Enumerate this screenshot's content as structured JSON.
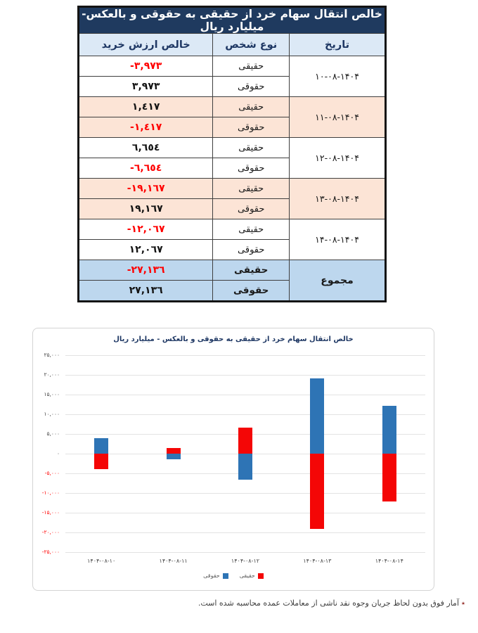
{
  "colors": {
    "navy": "#1F3A5F",
    "header_bg": "#DCE9F6",
    "total_bg": "#BDD7EE",
    "alt_row_bg": "#FCE4D6",
    "negative_text": "#FF0000",
    "series_red": "#F40606",
    "series_blue": "#2E74B5",
    "gridline": "#E3E3E3"
  },
  "table": {
    "title": "خالص انتقال سهام خرد از حقیقی به حقوقی و بالعکس- میلیارد ریال",
    "columns": [
      "تاریخ",
      "نوع شخص",
      "خالص ارزش خرید"
    ],
    "groups": [
      {
        "date": "۱۰-۰۸-۱۴۰۴",
        "bg": "white",
        "bold": false,
        "rows": [
          {
            "type": "حقیقی",
            "value": "-٣,٩٧٣",
            "negative": true
          },
          {
            "type": "حقوقی",
            "value": "٣,٩٧٣",
            "negative": false
          }
        ]
      },
      {
        "date": "۱۱-۰۸-۱۴۰۴",
        "bg": "peach",
        "bold": false,
        "rows": [
          {
            "type": "حقیقی",
            "value": "١,٤١٧",
            "negative": false
          },
          {
            "type": "حقوقی",
            "value": "-١,٤١٧",
            "negative": true
          }
        ]
      },
      {
        "date": "۱۲-۰۸-۱۴۰۴",
        "bg": "white",
        "bold": false,
        "rows": [
          {
            "type": "حقیقی",
            "value": "٦,٦٥٤",
            "negative": false
          },
          {
            "type": "حقوقی",
            "value": "-٦,٦٥٤",
            "negative": true
          }
        ]
      },
      {
        "date": "۱۳-۰۸-۱۴۰۴",
        "bg": "peach",
        "bold": false,
        "rows": [
          {
            "type": "حقیقی",
            "value": "-١٩,١٦٧",
            "negative": true
          },
          {
            "type": "حقوقی",
            "value": "١٩,١٦٧",
            "negative": false
          }
        ]
      },
      {
        "date": "۱۴-۰۸-۱۴۰۴",
        "bg": "white",
        "bold": false,
        "rows": [
          {
            "type": "حقیقی",
            "value": "-١٢,٠٦٧",
            "negative": true
          },
          {
            "type": "حقوقی",
            "value": "١٢,٠٦٧",
            "negative": false
          }
        ]
      },
      {
        "date": "مجموع",
        "bg": "blue",
        "bold": true,
        "rows": [
          {
            "type": "حقیقی",
            "value": "-٢٧,١٣٦",
            "negative": true
          },
          {
            "type": "حقوقی",
            "value": "٢٧,١٣٦",
            "negative": false
          }
        ]
      }
    ]
  },
  "chart_data": {
    "type": "bar",
    "stacked": true,
    "title": "خالص انتقال سهام خرد از حقیقی به حقوقی و بالعکس - میلیارد ریال",
    "categories": [
      "۱۴۰۴-۰۸-۱۰",
      "۱۴۰۴-۰۸-۱۱",
      "۱۴۰۴-۰۸-۱۲",
      "۱۴۰۴-۰۸-۱۳",
      "۱۴۰۴-۰۸-۱۴"
    ],
    "series": [
      {
        "name": "حقیقی",
        "key": "haghighi",
        "color": "#F40606",
        "values": [
          -3973,
          1417,
          6654,
          -19167,
          -12067
        ]
      },
      {
        "name": "حقوقی",
        "key": "hoghooghi",
        "color": "#2E74B5",
        "values": [
          3973,
          -1417,
          -6654,
          19167,
          12067
        ]
      }
    ],
    "xlabel": "",
    "ylabel": "",
    "ylim": [
      -25000,
      25000
    ],
    "ytick_step": 5000,
    "ytick_labels": [
      "۲۵,۰۰۰",
      "۲۰,۰۰۰",
      "۱۵,۰۰۰",
      "۱۰,۰۰۰",
      "۵,۰۰۰",
      "۰",
      "-۵,۰۰۰",
      "-۱۰,۰۰۰",
      "-۱۵,۰۰۰",
      "-۲۰,۰۰۰",
      "-۲۵,۰۰۰"
    ],
    "grid": true,
    "legend_position": "bottom"
  },
  "footnote": {
    "star": "٭",
    "text": "آمار فوق بدون لحاظ جریان وجوه نقد ناشی از معاملات عمده محاسبه شده است."
  }
}
